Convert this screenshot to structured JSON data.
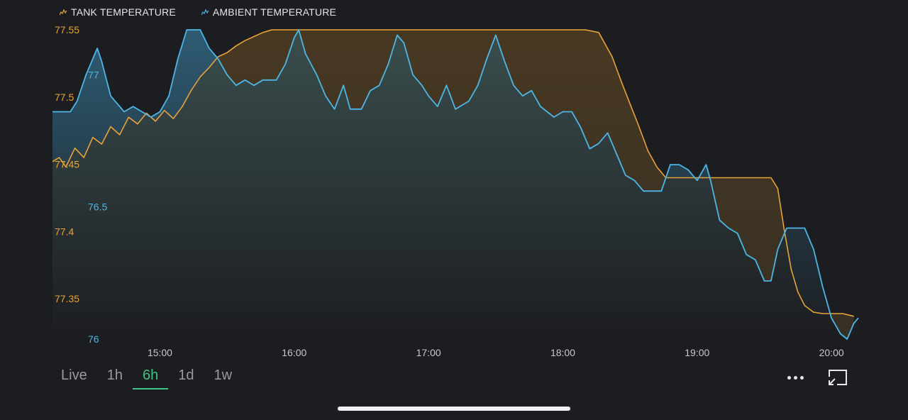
{
  "legend": {
    "tank_label": "TANK TEMPERATURE",
    "ambient_label": "AMBIENT TEMPERATURE"
  },
  "colors": {
    "tank": "#e8a33a",
    "ambient": "#4db6e6",
    "background": "#1c1d21",
    "active": "#3fc483"
  },
  "range_buttons": [
    {
      "label": "Live",
      "active": false
    },
    {
      "label": "1h",
      "active": false
    },
    {
      "label": "6h",
      "active": true
    },
    {
      "label": "1d",
      "active": false
    },
    {
      "label": "1w",
      "active": false
    }
  ],
  "icons": {
    "more": "more-horizontal-icon",
    "fullscreen": "collapse-screen-icon"
  },
  "chart_data": {
    "type": "area",
    "xlim": [
      "14:12",
      "20:12"
    ],
    "x_ticks": [
      "15:00",
      "16:00",
      "17:00",
      "18:00",
      "19:00",
      "20:00"
    ],
    "y_left": {
      "ticks": [
        "77.55",
        "77.5",
        "77.45",
        "77.4",
        "77.35"
      ],
      "lim": [
        77.32,
        77.55
      ],
      "series": "tank"
    },
    "y_right_inner": {
      "ticks": [
        "77",
        "76.5",
        "76"
      ],
      "lim": [
        76,
        77.17
      ],
      "series": "ambient"
    },
    "series": [
      {
        "name": "TANK TEMPERATURE",
        "key": "tank",
        "points": [
          [
            "14:12",
            77.452
          ],
          [
            "14:15",
            77.455
          ],
          [
            "14:18",
            77.448
          ],
          [
            "14:22",
            77.462
          ],
          [
            "14:26",
            77.455
          ],
          [
            "14:30",
            77.47
          ],
          [
            "14:34",
            77.465
          ],
          [
            "14:38",
            77.478
          ],
          [
            "14:42",
            77.472
          ],
          [
            "14:46",
            77.485
          ],
          [
            "14:50",
            77.48
          ],
          [
            "14:54",
            77.488
          ],
          [
            "14:58",
            77.482
          ],
          [
            "15:02",
            77.49
          ],
          [
            "15:06",
            77.484
          ],
          [
            "15:10",
            77.493
          ],
          [
            "15:14",
            77.505
          ],
          [
            "15:18",
            77.515
          ],
          [
            "15:22",
            77.522
          ],
          [
            "15:26",
            77.53
          ],
          [
            "15:30",
            77.533
          ],
          [
            "15:34",
            77.538
          ],
          [
            "15:38",
            77.542
          ],
          [
            "15:42",
            77.545
          ],
          [
            "15:46",
            77.548
          ],
          [
            "15:50",
            77.55
          ],
          [
            "16:00",
            77.55
          ],
          [
            "16:30",
            77.55
          ],
          [
            "17:00",
            77.55
          ],
          [
            "17:30",
            77.55
          ],
          [
            "18:00",
            77.55
          ],
          [
            "18:10",
            77.55
          ],
          [
            "18:16",
            77.548
          ],
          [
            "18:22",
            77.53
          ],
          [
            "18:26",
            77.512
          ],
          [
            "18:30",
            77.495
          ],
          [
            "18:34",
            77.478
          ],
          [
            "18:38",
            77.46
          ],
          [
            "18:42",
            77.448
          ],
          [
            "18:46",
            77.44
          ],
          [
            "18:52",
            77.44
          ],
          [
            "19:00",
            77.44
          ],
          [
            "19:20",
            77.44
          ],
          [
            "19:33",
            77.44
          ],
          [
            "19:36",
            77.432
          ],
          [
            "19:39",
            77.4
          ],
          [
            "19:42",
            77.372
          ],
          [
            "19:45",
            77.355
          ],
          [
            "19:48",
            77.345
          ],
          [
            "19:52",
            77.34
          ],
          [
            "19:56",
            77.339
          ],
          [
            "20:00",
            77.339
          ],
          [
            "20:05",
            77.339
          ],
          [
            "20:10",
            77.337
          ]
        ]
      },
      {
        "name": "AMBIENT TEMPERATURE",
        "key": "ambient",
        "points": [
          [
            "14:12",
            76.86
          ],
          [
            "14:20",
            76.86
          ],
          [
            "14:23",
            76.9
          ],
          [
            "14:27",
            77.0
          ],
          [
            "14:32",
            77.1
          ],
          [
            "14:34",
            77.05
          ],
          [
            "14:38",
            76.92
          ],
          [
            "14:44",
            76.86
          ],
          [
            "14:48",
            76.88
          ],
          [
            "14:52",
            76.86
          ],
          [
            "14:56",
            76.84
          ],
          [
            "15:00",
            76.86
          ],
          [
            "15:04",
            76.92
          ],
          [
            "15:08",
            77.06
          ],
          [
            "15:12",
            77.17
          ],
          [
            "15:18",
            77.17
          ],
          [
            "15:22",
            77.1
          ],
          [
            "15:26",
            77.06
          ],
          [
            "15:30",
            77.0
          ],
          [
            "15:34",
            76.96
          ],
          [
            "15:38",
            76.98
          ],
          [
            "15:42",
            76.96
          ],
          [
            "15:46",
            76.98
          ],
          [
            "15:52",
            76.98
          ],
          [
            "15:56",
            77.04
          ],
          [
            "16:00",
            77.14
          ],
          [
            "16:02",
            77.17
          ],
          [
            "16:05",
            77.08
          ],
          [
            "16:10",
            77.0
          ],
          [
            "16:14",
            76.92
          ],
          [
            "16:18",
            76.87
          ],
          [
            "16:22",
            76.96
          ],
          [
            "16:25",
            76.87
          ],
          [
            "16:30",
            76.87
          ],
          [
            "16:34",
            76.94
          ],
          [
            "16:38",
            76.96
          ],
          [
            "16:42",
            77.04
          ],
          [
            "16:46",
            77.15
          ],
          [
            "16:49",
            77.12
          ],
          [
            "16:53",
            77.0
          ],
          [
            "16:57",
            76.96
          ],
          [
            "17:00",
            76.92
          ],
          [
            "17:04",
            76.88
          ],
          [
            "17:08",
            76.96
          ],
          [
            "17:12",
            76.87
          ],
          [
            "17:18",
            76.9
          ],
          [
            "17:22",
            76.96
          ],
          [
            "17:26",
            77.06
          ],
          [
            "17:30",
            77.15
          ],
          [
            "17:34",
            77.05
          ],
          [
            "17:38",
            76.96
          ],
          [
            "17:42",
            76.92
          ],
          [
            "17:46",
            76.94
          ],
          [
            "17:50",
            76.88
          ],
          [
            "17:56",
            76.84
          ],
          [
            "18:00",
            76.86
          ],
          [
            "18:04",
            76.86
          ],
          [
            "18:08",
            76.8
          ],
          [
            "18:12",
            76.72
          ],
          [
            "18:16",
            76.74
          ],
          [
            "18:20",
            76.78
          ],
          [
            "18:24",
            76.7
          ],
          [
            "18:28",
            76.62
          ],
          [
            "18:32",
            76.6
          ],
          [
            "18:36",
            76.56
          ],
          [
            "18:40",
            76.56
          ],
          [
            "18:44",
            76.56
          ],
          [
            "18:48",
            76.66
          ],
          [
            "18:52",
            76.66
          ],
          [
            "18:56",
            76.64
          ],
          [
            "19:00",
            76.6
          ],
          [
            "19:04",
            76.66
          ],
          [
            "19:06",
            76.6
          ],
          [
            "19:10",
            76.45
          ],
          [
            "19:14",
            76.42
          ],
          [
            "19:18",
            76.4
          ],
          [
            "19:22",
            76.32
          ],
          [
            "19:26",
            76.3
          ],
          [
            "19:30",
            76.22
          ],
          [
            "19:33",
            76.22
          ],
          [
            "19:36",
            76.34
          ],
          [
            "19:40",
            76.42
          ],
          [
            "19:44",
            76.42
          ],
          [
            "19:48",
            76.42
          ],
          [
            "19:52",
            76.34
          ],
          [
            "19:56",
            76.2
          ],
          [
            "20:00",
            76.08
          ],
          [
            "20:04",
            76.02
          ],
          [
            "20:07",
            76.0
          ],
          [
            "20:10",
            76.06
          ],
          [
            "20:12",
            76.08
          ]
        ]
      }
    ]
  }
}
